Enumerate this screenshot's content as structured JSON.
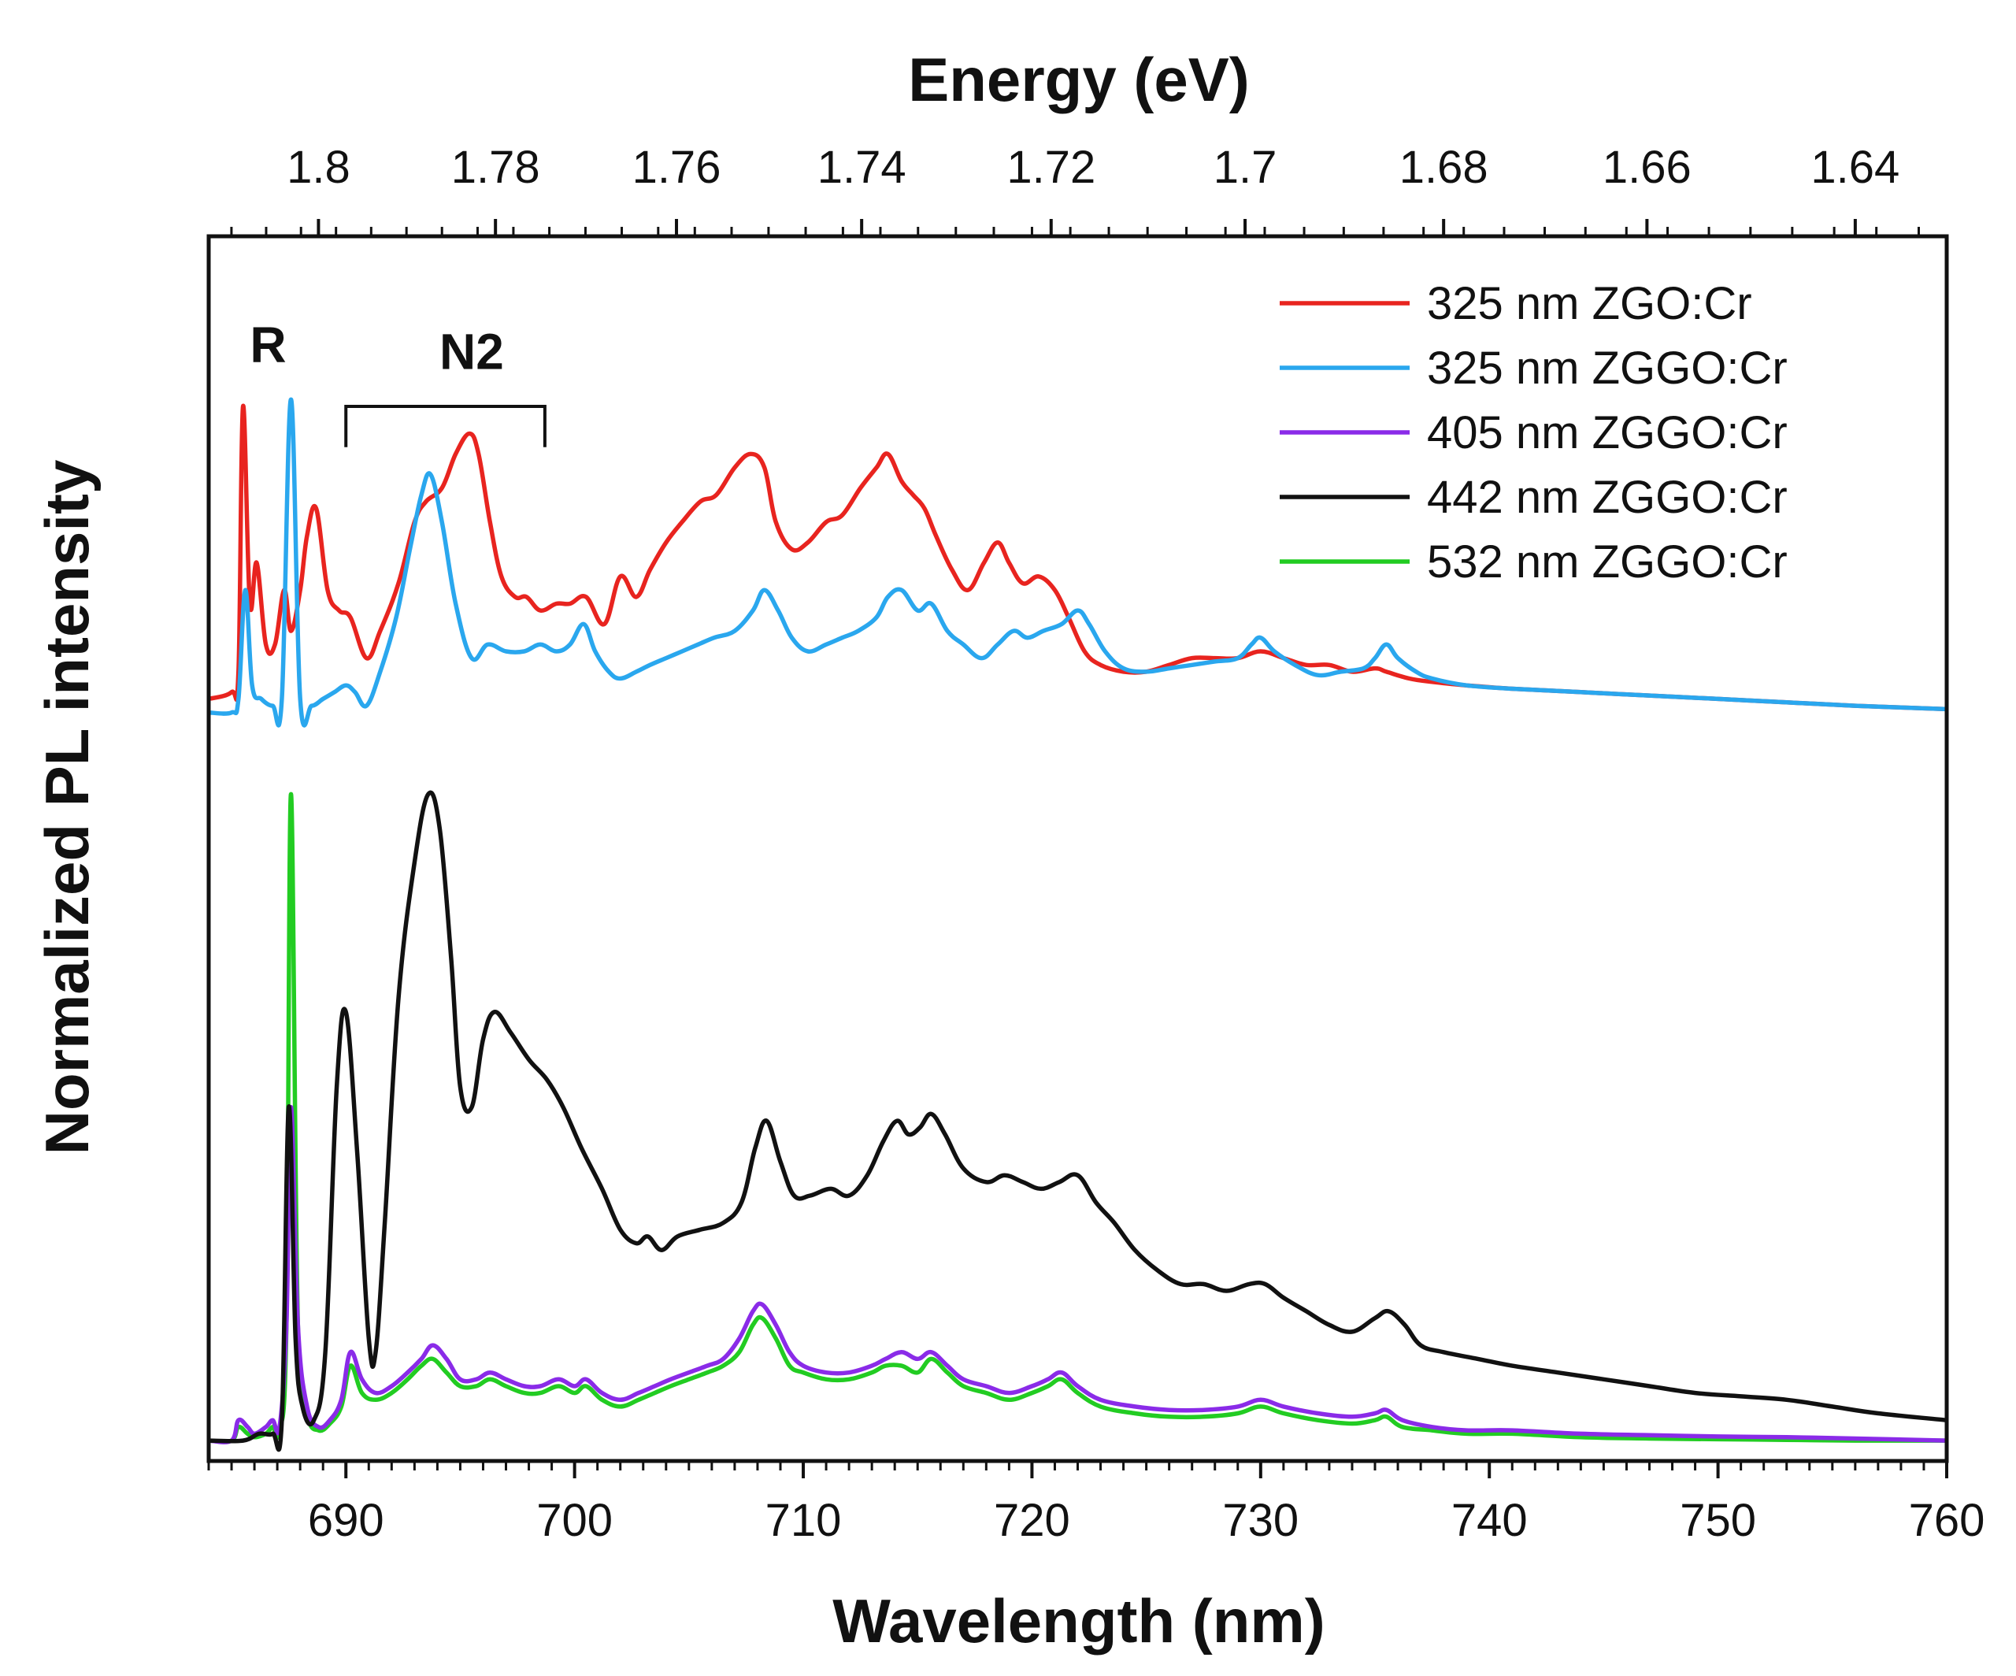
{
  "chart_data": {
    "type": "line",
    "title": "",
    "xlabel": "Wavelength (nm)",
    "ylabel": "Normalized PL intensity",
    "top_axis_label": "Energy (eV)",
    "xlim": [
      684,
      760
    ],
    "ylim": [
      0,
      1.8
    ],
    "grid": false,
    "legend_position": "top-right",
    "x_ticks": [
      690,
      700,
      710,
      720,
      730,
      740,
      750,
      760
    ],
    "top_ticks": [
      1.8,
      1.78,
      1.76,
      1.74,
      1.72,
      1.7,
      1.68,
      1.66,
      1.64
    ],
    "top_tick_labels": [
      "1.8",
      "1.78",
      "1.76",
      "1.74",
      "1.72",
      "1.7",
      "1.68",
      "1.66",
      "1.64"
    ],
    "annotations": [
      {
        "text": "R",
        "x": 686.6,
        "y": 1.615
      },
      {
        "text": "N2",
        "x": 695.5,
        "y": 1.605,
        "bracket_from": 690.0,
        "bracket_to": 698.7,
        "bracket_y": 1.55,
        "bracket_drop": 1.49
      }
    ],
    "series": [
      {
        "name": "325 nm ZGO:Cr",
        "color": "#e8241f",
        "x": [
          684,
          685,
          685.3,
          685.5,
          685.8,
          686.1,
          686.5,
          686.9,
          687.3,
          687.6,
          688.0,
          688.3,
          688.7,
          689.2,
          689.7,
          690.2,
          690.9,
          691.5,
          692.3,
          693.0,
          693.5,
          694.2,
          694.8,
          695.4,
          695.8,
          696.3,
          696.8,
          697.4,
          697.9,
          698.5,
          699.2,
          699.8,
          700.5,
          701.3,
          702.0,
          702.7,
          703.3,
          704.0,
          704.7,
          705.5,
          706.2,
          707.0,
          707.7,
          708.3,
          708.8,
          709.5,
          710.2,
          711.0,
          711.7,
          712.5,
          713.2,
          713.7,
          714.3,
          714.8,
          715.3,
          715.8,
          716.5,
          717.2,
          717.9,
          718.5,
          719.0,
          719.6,
          720.3,
          721.0,
          721.6,
          722.3,
          723.0,
          724.0,
          725.0,
          726.0,
          727.0,
          728.0,
          729.0,
          730.0,
          731.0,
          732.0,
          733.0,
          734.0,
          735.0,
          735.5,
          736.5,
          737.5,
          739.0,
          741.0,
          744.0,
          747.0,
          750.0,
          753.0,
          756.0,
          760.0
        ],
        "y": [
          1.12,
          1.13,
          1.16,
          1.55,
          1.26,
          1.32,
          1.2,
          1.2,
          1.28,
          1.22,
          1.28,
          1.36,
          1.4,
          1.28,
          1.25,
          1.24,
          1.18,
          1.22,
          1.29,
          1.38,
          1.41,
          1.43,
          1.48,
          1.51,
          1.48,
          1.38,
          1.3,
          1.27,
          1.27,
          1.25,
          1.26,
          1.26,
          1.27,
          1.23,
          1.3,
          1.27,
          1.31,
          1.35,
          1.38,
          1.41,
          1.42,
          1.46,
          1.48,
          1.46,
          1.38,
          1.34,
          1.35,
          1.38,
          1.39,
          1.43,
          1.46,
          1.48,
          1.44,
          1.42,
          1.4,
          1.36,
          1.31,
          1.28,
          1.32,
          1.35,
          1.32,
          1.29,
          1.3,
          1.28,
          1.24,
          1.19,
          1.17,
          1.16,
          1.16,
          1.17,
          1.18,
          1.18,
          1.18,
          1.19,
          1.18,
          1.17,
          1.17,
          1.16,
          1.165,
          1.16,
          1.15,
          1.145,
          1.14,
          1.135,
          1.13,
          1.125,
          1.12,
          1.115,
          1.11,
          1.105
        ]
      },
      {
        "name": "325 nm ZGGO:Cr",
        "color": "#2aa7ee",
        "x": [
          684,
          685.0,
          685.3,
          685.6,
          685.9,
          686.3,
          686.8,
          687.2,
          687.6,
          688.0,
          688.5,
          689.0,
          689.5,
          690.0,
          690.4,
          690.9,
          691.5,
          692.2,
          692.8,
          693.3,
          693.7,
          694.2,
          694.8,
          695.5,
          696.2,
          697.0,
          697.8,
          698.5,
          699.2,
          699.8,
          700.4,
          700.9,
          701.5,
          702.0,
          702.7,
          703.3,
          704.0,
          704.7,
          705.4,
          706.1,
          707.0,
          707.8,
          708.3,
          708.9,
          709.5,
          710.2,
          711.0,
          711.7,
          712.4,
          713.2,
          713.7,
          714.3,
          715.0,
          715.6,
          716.3,
          717.0,
          717.8,
          718.5,
          719.2,
          719.8,
          720.5,
          721.3,
          722.0,
          722.5,
          723.2,
          724.0,
          725.0,
          726.0,
          727.0,
          728.0,
          729.0,
          729.6,
          730.0,
          730.6,
          731.5,
          732.5,
          733.5,
          734.5,
          735.0,
          735.5,
          736.0,
          736.8,
          737.5,
          739.0,
          741.0,
          744.0,
          747.0,
          750.0,
          753.0,
          756.0,
          760.0
        ],
        "y": [
          1.1,
          1.1,
          1.12,
          1.28,
          1.14,
          1.12,
          1.11,
          1.12,
          1.56,
          1.12,
          1.11,
          1.12,
          1.13,
          1.14,
          1.13,
          1.11,
          1.16,
          1.24,
          1.34,
          1.42,
          1.45,
          1.38,
          1.26,
          1.18,
          1.2,
          1.19,
          1.19,
          1.2,
          1.19,
          1.2,
          1.23,
          1.19,
          1.16,
          1.15,
          1.16,
          1.17,
          1.18,
          1.19,
          1.2,
          1.21,
          1.22,
          1.25,
          1.28,
          1.25,
          1.21,
          1.19,
          1.2,
          1.21,
          1.22,
          1.24,
          1.27,
          1.28,
          1.25,
          1.26,
          1.22,
          1.2,
          1.18,
          1.2,
          1.22,
          1.21,
          1.22,
          1.23,
          1.25,
          1.23,
          1.19,
          1.165,
          1.16,
          1.165,
          1.17,
          1.175,
          1.18,
          1.2,
          1.21,
          1.19,
          1.17,
          1.155,
          1.16,
          1.165,
          1.18,
          1.2,
          1.18,
          1.16,
          1.15,
          1.14,
          1.135,
          1.13,
          1.125,
          1.12,
          1.115,
          1.11,
          1.105
        ]
      },
      {
        "name": "405 nm ZGGO:Cr",
        "color": "#8a2be8",
        "x": [
          684,
          685.0,
          685.3,
          685.7,
          686.0,
          686.5,
          686.8,
          687.1,
          687.4,
          687.6,
          687.9,
          688.3,
          688.8,
          689.3,
          689.8,
          690.2,
          690.7,
          691.3,
          692.0,
          692.7,
          693.3,
          693.8,
          694.4,
          695.0,
          695.7,
          696.3,
          697.0,
          697.8,
          698.5,
          699.3,
          700.0,
          700.5,
          701.2,
          702.0,
          702.8,
          703.5,
          704.2,
          705.0,
          705.8,
          706.5,
          707.2,
          707.8,
          708.2,
          708.8,
          709.4,
          710.0,
          711.0,
          712.0,
          713.0,
          713.6,
          714.3,
          715.0,
          715.6,
          716.3,
          717.0,
          718.0,
          719.0,
          720.0,
          720.7,
          721.3,
          722.0,
          723.0,
          724.5,
          726.0,
          727.5,
          729.0,
          730.0,
          731.0,
          732.5,
          734.0,
          735.0,
          735.5,
          736.2,
          737.5,
          739.0,
          741.0,
          744.0,
          747.0,
          750.0,
          753.0,
          756.0,
          760.0
        ],
        "y": [
          0.03,
          0.03,
          0.06,
          0.05,
          0.04,
          0.05,
          0.06,
          0.05,
          0.2,
          0.52,
          0.2,
          0.08,
          0.05,
          0.06,
          0.09,
          0.16,
          0.12,
          0.1,
          0.11,
          0.13,
          0.15,
          0.17,
          0.15,
          0.12,
          0.12,
          0.13,
          0.12,
          0.11,
          0.11,
          0.12,
          0.11,
          0.12,
          0.1,
          0.09,
          0.1,
          0.11,
          0.12,
          0.13,
          0.14,
          0.15,
          0.18,
          0.22,
          0.23,
          0.2,
          0.16,
          0.14,
          0.13,
          0.13,
          0.14,
          0.15,
          0.16,
          0.15,
          0.16,
          0.14,
          0.12,
          0.11,
          0.1,
          0.11,
          0.12,
          0.13,
          0.11,
          0.09,
          0.08,
          0.075,
          0.075,
          0.08,
          0.09,
          0.08,
          0.07,
          0.065,
          0.07,
          0.075,
          0.06,
          0.05,
          0.045,
          0.045,
          0.04,
          0.038,
          0.036,
          0.035,
          0.033,
          0.03
        ]
      },
      {
        "name": "442 nm ZGGO:Cr",
        "color": "#111111",
        "x": [
          684,
          685.5,
          686.2,
          686.8,
          687.2,
          687.5,
          687.8,
          688.1,
          688.6,
          689.1,
          689.6,
          690.0,
          690.5,
          691.0,
          691.3,
          691.7,
          692.3,
          693.0,
          693.6,
          694.1,
          694.6,
          695.0,
          695.5,
          696.0,
          696.5,
          697.2,
          698.0,
          698.8,
          699.5,
          700.3,
          701.2,
          702.0,
          702.7,
          703.2,
          703.8,
          704.5,
          705.5,
          706.5,
          707.3,
          707.9,
          708.4,
          709.0,
          709.6,
          710.3,
          711.2,
          712.0,
          712.8,
          713.5,
          714.1,
          714.6,
          715.1,
          715.6,
          716.2,
          717.0,
          718.0,
          718.8,
          719.6,
          720.4,
          721.2,
          722.0,
          722.8,
          723.6,
          724.5,
          725.5,
          726.5,
          727.5,
          728.5,
          729.5,
          730.2,
          731.0,
          732.0,
          733.0,
          734.0,
          735.0,
          735.6,
          736.3,
          737.0,
          738.0,
          739.5,
          741.0,
          743.0,
          745.0,
          747.0,
          749.0,
          751.0,
          753.0,
          755.0,
          757.0,
          760.0
        ],
        "y": [
          0.03,
          0.03,
          0.04,
          0.04,
          0.06,
          0.52,
          0.18,
          0.08,
          0.06,
          0.16,
          0.55,
          0.66,
          0.45,
          0.18,
          0.16,
          0.35,
          0.68,
          0.88,
          0.98,
          0.93,
          0.74,
          0.55,
          0.52,
          0.62,
          0.66,
          0.63,
          0.59,
          0.56,
          0.52,
          0.46,
          0.4,
          0.34,
          0.32,
          0.33,
          0.31,
          0.33,
          0.34,
          0.35,
          0.38,
          0.46,
          0.5,
          0.44,
          0.39,
          0.39,
          0.4,
          0.39,
          0.42,
          0.47,
          0.5,
          0.48,
          0.49,
          0.51,
          0.48,
          0.43,
          0.41,
          0.42,
          0.41,
          0.4,
          0.41,
          0.42,
          0.38,
          0.35,
          0.31,
          0.28,
          0.26,
          0.26,
          0.25,
          0.26,
          0.26,
          0.24,
          0.22,
          0.2,
          0.19,
          0.21,
          0.22,
          0.2,
          0.17,
          0.16,
          0.15,
          0.14,
          0.13,
          0.12,
          0.11,
          0.1,
          0.095,
          0.09,
          0.08,
          0.07,
          0.06
        ]
      },
      {
        "name": "532 nm ZGGO:Cr",
        "color": "#22cc22",
        "x": [
          684,
          685.0,
          685.3,
          685.7,
          686.0,
          686.5,
          686.8,
          687.1,
          687.4,
          687.6,
          687.9,
          688.3,
          688.8,
          689.3,
          689.8,
          690.2,
          690.7,
          691.3,
          692.0,
          692.7,
          693.3,
          693.8,
          694.4,
          695.0,
          695.7,
          696.3,
          697.0,
          697.8,
          698.5,
          699.3,
          700.0,
          700.5,
          701.2,
          702.0,
          702.8,
          703.5,
          704.2,
          705.0,
          705.8,
          706.5,
          707.2,
          707.8,
          708.2,
          708.8,
          709.4,
          710.0,
          711.0,
          712.0,
          713.0,
          713.6,
          714.3,
          715.0,
          715.6,
          716.3,
          717.0,
          718.0,
          719.0,
          720.0,
          720.7,
          721.3,
          722.0,
          723.0,
          724.5,
          726.0,
          727.5,
          729.0,
          730.0,
          731.0,
          732.5,
          734.0,
          735.0,
          735.5,
          736.2,
          737.5,
          739.0,
          741.0,
          744.0,
          747.0,
          750.0,
          753.0,
          756.0,
          760.0
        ],
        "y": [
          0.03,
          0.03,
          0.05,
          0.04,
          0.035,
          0.04,
          0.05,
          0.045,
          0.2,
          0.98,
          0.2,
          0.07,
          0.045,
          0.055,
          0.08,
          0.14,
          0.1,
          0.09,
          0.1,
          0.12,
          0.14,
          0.15,
          0.13,
          0.11,
          0.11,
          0.12,
          0.11,
          0.1,
          0.1,
          0.11,
          0.1,
          0.11,
          0.09,
          0.08,
          0.09,
          0.1,
          0.11,
          0.12,
          0.13,
          0.14,
          0.16,
          0.2,
          0.21,
          0.18,
          0.14,
          0.13,
          0.12,
          0.12,
          0.13,
          0.14,
          0.14,
          0.13,
          0.15,
          0.13,
          0.11,
          0.1,
          0.09,
          0.1,
          0.11,
          0.12,
          0.1,
          0.08,
          0.07,
          0.065,
          0.065,
          0.07,
          0.08,
          0.07,
          0.06,
          0.055,
          0.06,
          0.065,
          0.05,
          0.045,
          0.04,
          0.04,
          0.035,
          0.033,
          0.032,
          0.031,
          0.03,
          0.03
        ]
      }
    ]
  }
}
